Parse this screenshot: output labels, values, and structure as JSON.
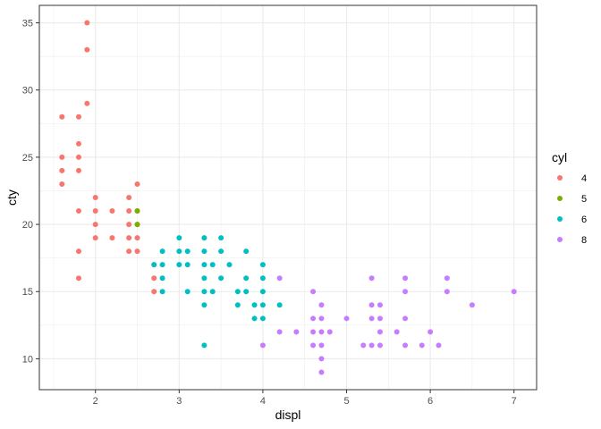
{
  "chart_data": {
    "type": "scatter",
    "title": "",
    "xlabel": "displ",
    "ylabel": "cty",
    "xlim": [
      1.33,
      7.27
    ],
    "ylim": [
      7.7,
      36.3
    ],
    "xticks": [
      2,
      3,
      4,
      5,
      6,
      7
    ],
    "yticks": [
      10,
      15,
      20,
      25,
      30,
      35
    ],
    "grid": true,
    "legend": {
      "title": "cyl",
      "position": "right",
      "entries": [
        {
          "label": "4",
          "color": "#F8766D"
        },
        {
          "label": "5",
          "color": "#7CAE00"
        },
        {
          "label": "6",
          "color": "#00BFC4"
        },
        {
          "label": "8",
          "color": "#C77CFF"
        }
      ]
    },
    "series": [
      {
        "name": "4",
        "color": "#F8766D",
        "points": [
          [
            1.6,
            28
          ],
          [
            1.6,
            25
          ],
          [
            1.6,
            24
          ],
          [
            1.6,
            23
          ],
          [
            1.8,
            28
          ],
          [
            1.8,
            26
          ],
          [
            1.8,
            25
          ],
          [
            1.8,
            24
          ],
          [
            1.8,
            21
          ],
          [
            1.8,
            18
          ],
          [
            1.8,
            16
          ],
          [
            1.9,
            35
          ],
          [
            1.9,
            33
          ],
          [
            1.9,
            29
          ],
          [
            2.0,
            22
          ],
          [
            2.0,
            21
          ],
          [
            2.0,
            20
          ],
          [
            2.0,
            19
          ],
          [
            2.2,
            21
          ],
          [
            2.2,
            19
          ],
          [
            2.4,
            22
          ],
          [
            2.4,
            21
          ],
          [
            2.4,
            20
          ],
          [
            2.4,
            19
          ],
          [
            2.4,
            18
          ],
          [
            2.5,
            23
          ],
          [
            2.5,
            21
          ],
          [
            2.5,
            20
          ],
          [
            2.5,
            19
          ],
          [
            2.5,
            18
          ],
          [
            2.7,
            17
          ],
          [
            2.7,
            16
          ],
          [
            2.7,
            15
          ]
        ]
      },
      {
        "name": "5",
        "color": "#7CAE00",
        "points": [
          [
            2.5,
            21
          ],
          [
            2.5,
            20
          ]
        ]
      },
      {
        "name": "6",
        "color": "#00BFC4",
        "points": [
          [
            2.7,
            17
          ],
          [
            2.8,
            18
          ],
          [
            2.8,
            17
          ],
          [
            2.8,
            16
          ],
          [
            2.8,
            15
          ],
          [
            3.0,
            19
          ],
          [
            3.0,
            18
          ],
          [
            3.0,
            17
          ],
          [
            3.1,
            18
          ],
          [
            3.1,
            17
          ],
          [
            3.1,
            15
          ],
          [
            3.3,
            19
          ],
          [
            3.3,
            18
          ],
          [
            3.3,
            17
          ],
          [
            3.3,
            16
          ],
          [
            3.3,
            15
          ],
          [
            3.3,
            14
          ],
          [
            3.3,
            11
          ],
          [
            3.4,
            17
          ],
          [
            3.4,
            15
          ],
          [
            3.5,
            19
          ],
          [
            3.5,
            18
          ],
          [
            3.5,
            16
          ],
          [
            3.6,
            17
          ],
          [
            3.7,
            15
          ],
          [
            3.7,
            14
          ],
          [
            3.8,
            18
          ],
          [
            3.8,
            16
          ],
          [
            3.8,
            15
          ],
          [
            3.9,
            14
          ],
          [
            3.9,
            13
          ],
          [
            4.0,
            17
          ],
          [
            4.0,
            16
          ],
          [
            4.0,
            15
          ],
          [
            4.0,
            14
          ],
          [
            4.0,
            13
          ],
          [
            4.2,
            14
          ]
        ]
      },
      {
        "name": "8",
        "color": "#C77CFF",
        "points": [
          [
            4.0,
            11
          ],
          [
            4.2,
            16
          ],
          [
            4.2,
            12
          ],
          [
            4.4,
            12
          ],
          [
            4.6,
            15
          ],
          [
            4.6,
            13
          ],
          [
            4.6,
            12
          ],
          [
            4.6,
            11
          ],
          [
            4.7,
            14
          ],
          [
            4.7,
            13
          ],
          [
            4.7,
            12
          ],
          [
            4.7,
            11
          ],
          [
            4.7,
            10
          ],
          [
            4.7,
            9
          ],
          [
            4.8,
            12
          ],
          [
            5.0,
            13
          ],
          [
            5.2,
            11
          ],
          [
            5.3,
            16
          ],
          [
            5.3,
            14
          ],
          [
            5.3,
            13
          ],
          [
            5.3,
            11
          ],
          [
            5.4,
            14
          ],
          [
            5.4,
            13
          ],
          [
            5.4,
            12
          ],
          [
            5.4,
            11
          ],
          [
            5.6,
            12
          ],
          [
            5.7,
            16
          ],
          [
            5.7,
            15
          ],
          [
            5.7,
            13
          ],
          [
            5.7,
            11
          ],
          [
            5.9,
            11
          ],
          [
            6.0,
            12
          ],
          [
            6.1,
            11
          ],
          [
            6.2,
            16
          ],
          [
            6.2,
            15
          ],
          [
            6.5,
            14
          ],
          [
            7.0,
            15
          ]
        ]
      }
    ]
  }
}
